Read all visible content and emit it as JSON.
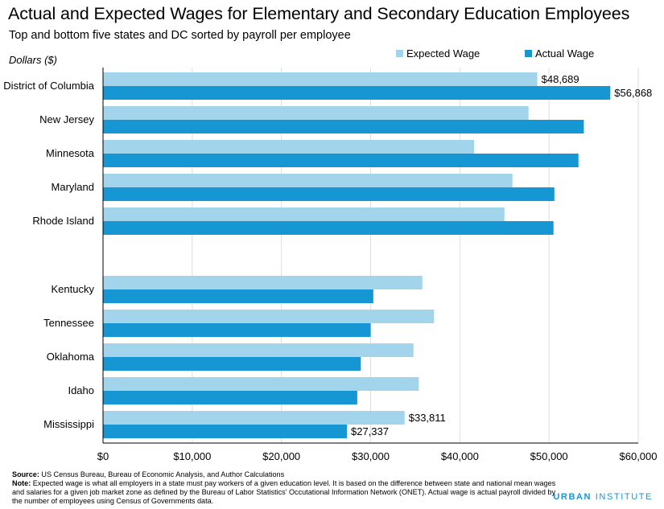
{
  "colors": {
    "expected": "#a2d4ec",
    "actual": "#1696d2",
    "grid": "#dedddd",
    "axis": "#000000",
    "logo": "#1696d2"
  },
  "units_label": "Dollars ($)",
  "source_label": "Source:",
  "source_text": "US Census Bureau, Bureau of Economic Analysis, and Author Calculations",
  "note_label": "Note:",
  "note_text": "Expected wage is what all employers in a state must pay workers of a given education level. It is based on the difference between state and national mean wages and salaries for a given job market zone as defined by the Bureau of Labor Statistics' Occutational Information Network (ONET). Actual wage is actual payroll divided by the number of employees using Census of Governments data.",
  "logo": {
    "bold": "URBAN",
    "rest": " INSTITUTE"
  },
  "chart_data": {
    "type": "bar",
    "orientation": "horizontal",
    "title": "Actual and Expected Wages for Elementary and Secondary Education Employees",
    "subtitle": "Top and bottom five states and DC sorted by payroll per employee",
    "categories": [
      "District of Columbia",
      "New Jersey",
      "Minnesota",
      "Maryland",
      "Rhode Island",
      "Kentucky",
      "Tennessee",
      "Oklahoma",
      "Idaho",
      "Mississippi"
    ],
    "series": [
      {
        "name": "Expected Wage",
        "values": [
          48689,
          47700,
          41600,
          45900,
          45000,
          35800,
          37100,
          34800,
          35400,
          33811
        ]
      },
      {
        "name": "Actual Wage",
        "values": [
          56868,
          53900,
          53300,
          50600,
          50500,
          30300,
          30000,
          28900,
          28500,
          27337
        ]
      }
    ],
    "data_labels": [
      {
        "category": "District of Columbia",
        "series": "Expected Wage",
        "text": "$48,689"
      },
      {
        "category": "District of Columbia",
        "series": "Actual Wage",
        "text": "$56,868"
      },
      {
        "category": "Mississippi",
        "series": "Expected Wage",
        "text": "$33,811"
      },
      {
        "category": "Mississippi",
        "series": "Actual Wage",
        "text": "$27,337"
      }
    ],
    "xlim": [
      0,
      60000
    ],
    "xticks": [
      0,
      10000,
      20000,
      30000,
      40000,
      50000,
      60000
    ],
    "xtick_labels": [
      "$0",
      "$10,000",
      "$20,000",
      "$30,000",
      "$40,000",
      "$50,000",
      "$60,000"
    ],
    "grid": true,
    "legend_position": "top-right"
  }
}
